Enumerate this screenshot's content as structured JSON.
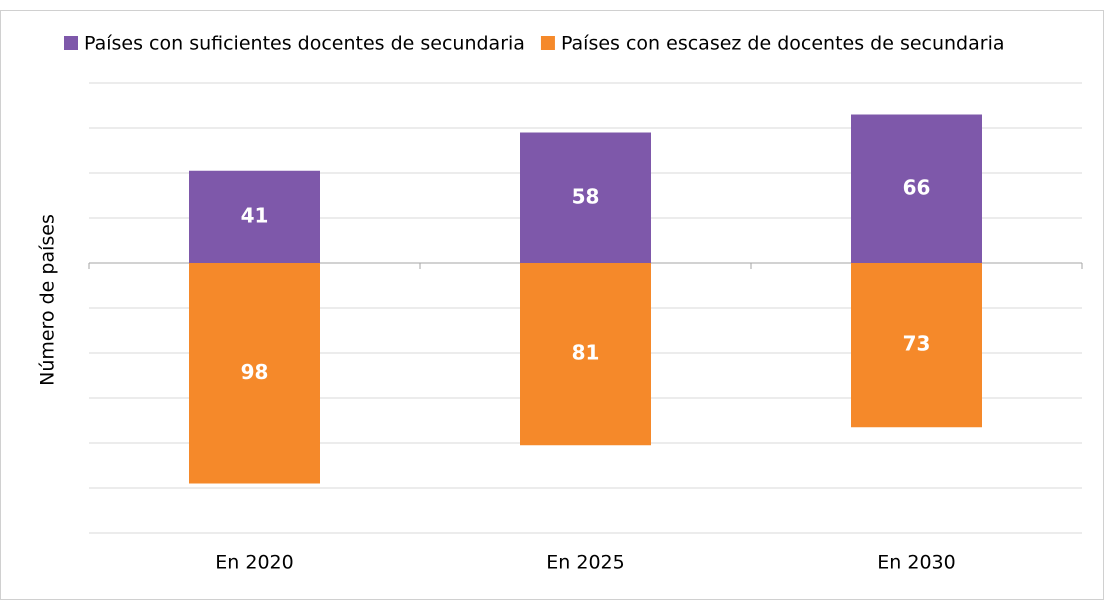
{
  "chart_data": {
    "type": "bar",
    "ylabel": "Número de países",
    "categories": [
      "En 2020",
      "En 2025",
      "En 2030"
    ],
    "series": [
      {
        "name": "Países con suficientes docentes de secundaria",
        "color": "#7e58aa",
        "values": [
          41,
          58,
          66
        ]
      },
      {
        "name": "Países con escasez de docentes de secundaria",
        "color": "#f5892a",
        "values": [
          -98,
          -81,
          -73
        ],
        "value_labels": [
          "98",
          "81",
          "73"
        ]
      }
    ],
    "ylim": [
      -120,
      80
    ],
    "yticks": [
      -120,
      -100,
      -80,
      -60,
      -40,
      -20,
      0,
      20,
      40,
      60,
      80
    ],
    "grid": true,
    "legend": "top"
  }
}
